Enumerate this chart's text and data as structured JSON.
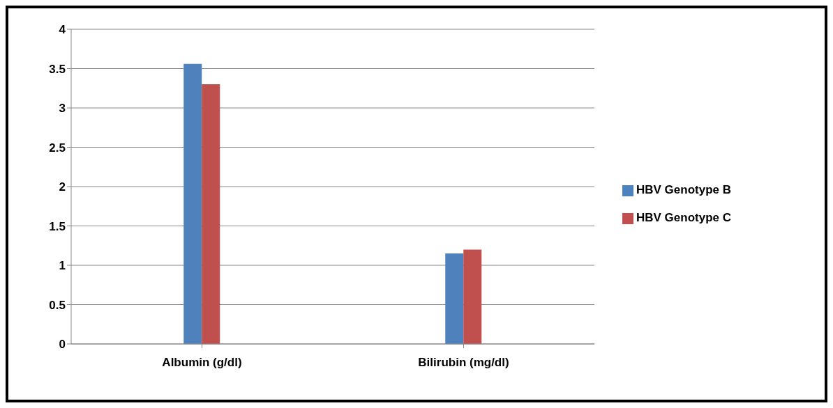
{
  "chart_data": {
    "type": "bar",
    "categories": [
      "Albumin (g/dl)",
      "Bilirubin (mg/dl)"
    ],
    "series": [
      {
        "name": "HBV Genotype B",
        "color": "#4f81bd",
        "values": [
          3.56,
          1.15
        ]
      },
      {
        "name": "HBV Genotype C",
        "color": "#c0504d",
        "values": [
          3.3,
          1.2
        ]
      }
    ],
    "ylim": [
      0,
      4
    ],
    "yticks": [
      0,
      0.5,
      1,
      1.5,
      2,
      2.5,
      3,
      3.5,
      4
    ],
    "grid": "y",
    "legend": "right"
  }
}
